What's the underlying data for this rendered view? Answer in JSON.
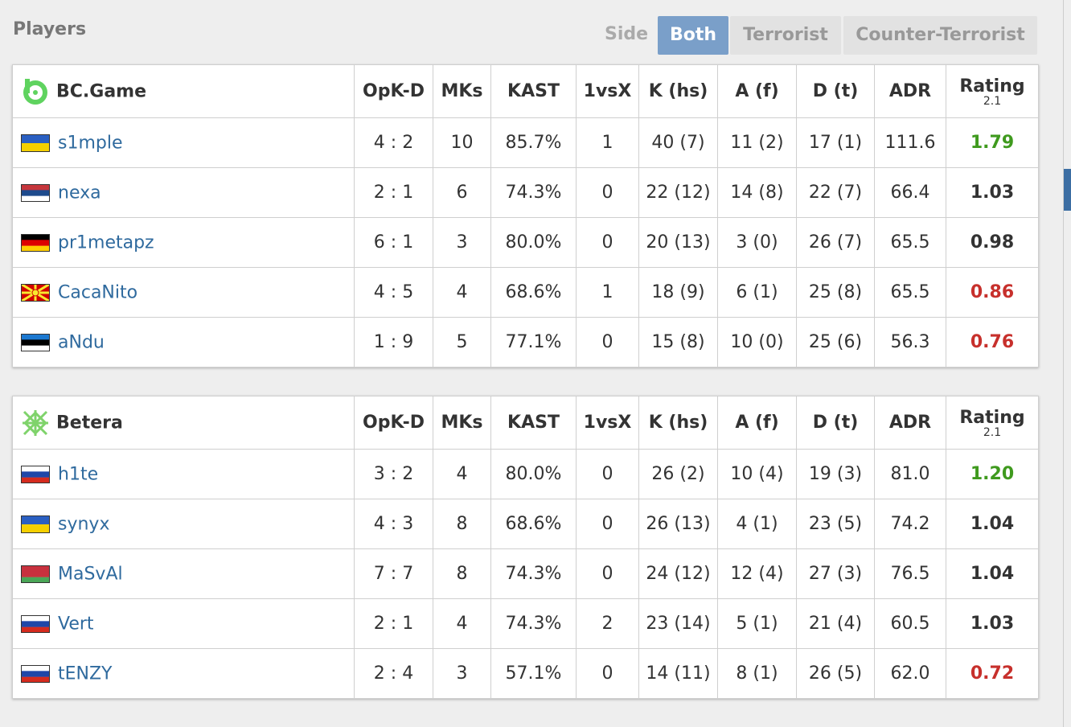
{
  "header": {
    "title": "Players",
    "side_label": "Side",
    "side_options": [
      "Both",
      "Terrorist",
      "Counter-Terrorist"
    ]
  },
  "teams": [
    {
      "name": "BC.Game",
      "columns": [
        "OpK-D",
        "MKs",
        "KAST",
        "1vsX",
        "K (hs)",
        "A (f)",
        "D (t)",
        "ADR",
        "Rating"
      ],
      "rating_version": "2.1",
      "rows": [
        {
          "player": "s1mple",
          "cells": [
            "4 : 2",
            "10",
            "85.7%",
            "1",
            "40 (7)",
            "11 (2)",
            "17 (1)",
            "111.6",
            "1.79"
          ],
          "rating_color": "#3f9a1e"
        },
        {
          "player": "nexa",
          "cells": [
            "2 : 1",
            "6",
            "74.3%",
            "0",
            "22 (12)",
            "14 (8)",
            "22 (7)",
            "66.4",
            "1.03"
          ],
          "rating_color": "#333333"
        },
        {
          "player": "pr1metapz",
          "cells": [
            "6 : 1",
            "3",
            "80.0%",
            "0",
            "20 (13)",
            "3 (0)",
            "26 (7)",
            "65.5",
            "0.98"
          ],
          "rating_color": "#333333"
        },
        {
          "player": "CacaNito",
          "cells": [
            "4 : 5",
            "4",
            "68.6%",
            "1",
            "18 (9)",
            "6 (1)",
            "25 (8)",
            "65.5",
            "0.86"
          ],
          "rating_color": "#c7302c"
        },
        {
          "player": "aNdu",
          "cells": [
            "1 : 9",
            "5",
            "77.1%",
            "0",
            "15 (8)",
            "10 (0)",
            "25 (6)",
            "56.3",
            "0.76"
          ],
          "rating_color": "#c7302c"
        }
      ]
    },
    {
      "name": "Betera",
      "columns": [
        "OpK-D",
        "MKs",
        "KAST",
        "1vsX",
        "K (hs)",
        "A (f)",
        "D (t)",
        "ADR",
        "Rating"
      ],
      "rating_version": "2.1",
      "rows": [
        {
          "player": "h1te",
          "cells": [
            "3 : 2",
            "4",
            "80.0%",
            "0",
            "26 (2)",
            "10 (4)",
            "19 (3)",
            "81.0",
            "1.20"
          ],
          "rating_color": "#3f9a1e"
        },
        {
          "player": "synyx",
          "cells": [
            "4 : 3",
            "8",
            "68.6%",
            "0",
            "26 (13)",
            "4 (1)",
            "23 (5)",
            "74.2",
            "1.04"
          ],
          "rating_color": "#333333"
        },
        {
          "player": "MaSvAl",
          "cells": [
            "7 : 7",
            "8",
            "74.3%",
            "0",
            "24 (12)",
            "12 (4)",
            "27 (3)",
            "76.5",
            "1.04"
          ],
          "rating_color": "#333333"
        },
        {
          "player": "Vert",
          "cells": [
            "2 : 1",
            "4",
            "74.3%",
            "2",
            "23 (14)",
            "5 (1)",
            "21 (4)",
            "60.5",
            "1.03"
          ],
          "rating_color": "#333333"
        },
        {
          "player": "tENZY",
          "cells": [
            "2 : 4",
            "3",
            "57.1%",
            "0",
            "14 (11)",
            "8 (1)",
            "26 (5)",
            "62.0",
            "0.72"
          ],
          "rating_color": "#c7302c"
        }
      ]
    }
  ]
}
